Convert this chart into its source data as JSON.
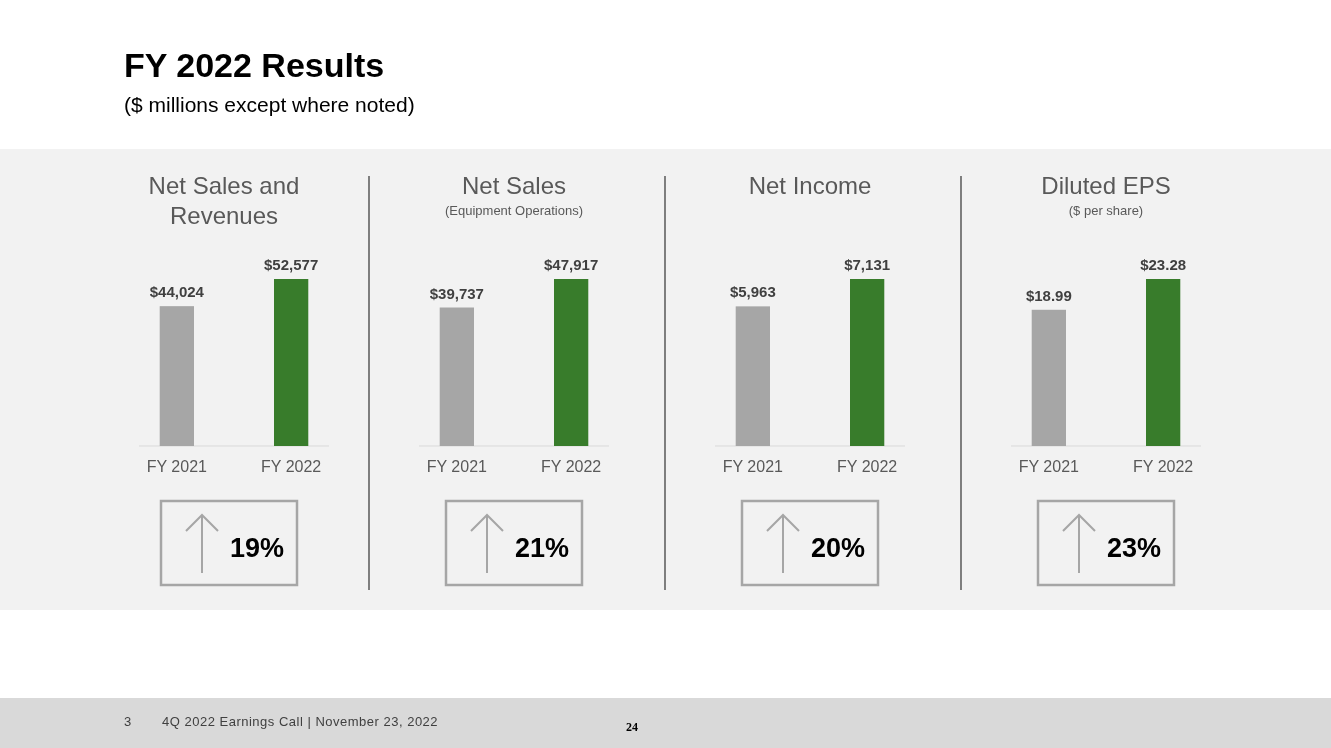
{
  "chart_data": [
    {
      "type": "bar",
      "title": "Net Sales and Revenues",
      "categories": [
        "FY 2021",
        "FY 2022"
      ],
      "values": [
        44024,
        52577
      ],
      "value_labels": [
        "$44,024",
        "$52,577"
      ],
      "colors": [
        "#a6a6a6",
        "#387c2b"
      ],
      "annotations": [
        "FY 2022 Results",
        "($ millions except where noted)",
        "3",
        "4Q 2022 Earnings Call | November 23, 2022",
        "24",
        "19%"
      ]
    },
    {
      "type": "bar",
      "title": "Net Sales",
      "subtitle": "(Equipment Operations)",
      "categories": [
        "FY 2021",
        "FY 2022"
      ],
      "values": [
        39737,
        47917
      ],
      "value_labels": [
        "$39,737",
        "$47,917"
      ],
      "colors": [
        "#a6a6a6",
        "#387c2b"
      ],
      "annotations": [
        "21%"
      ]
    },
    {
      "type": "bar",
      "title": "Net Income",
      "categories": [
        "FY 2021",
        "FY 2022"
      ],
      "values": [
        5963,
        7131
      ],
      "value_labels": [
        "$5,963",
        "$7,131"
      ],
      "colors": [
        "#a6a6a6",
        "#387c2b"
      ],
      "annotations": [
        "20%"
      ]
    },
    {
      "type": "bar",
      "title": "Diluted EPS",
      "subtitle": "($ per share)",
      "categories": [
        "FY 2021",
        "FY 2022"
      ],
      "values": [
        18.99,
        23.28
      ],
      "value_labels": [
        "$18.99",
        "$23.28"
      ],
      "colors": [
        "#a6a6a6",
        "#387c2b"
      ],
      "annotations": [
        "23%"
      ]
    }
  ]
}
